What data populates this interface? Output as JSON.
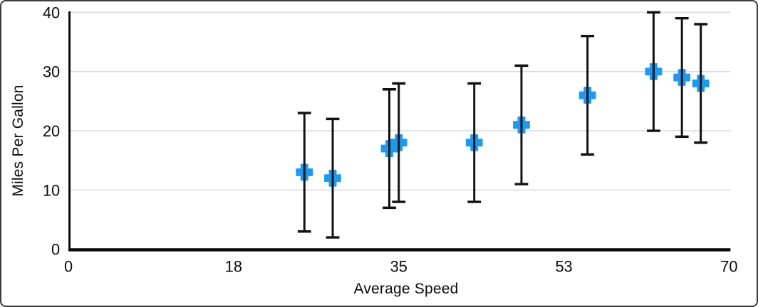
{
  "window": {
    "background_color": "#ffffff",
    "border_color": "#3d3d3d"
  },
  "chart_data": {
    "type": "scatter",
    "title": "",
    "xlabel": "Average Speed",
    "ylabel": "Miles Per Gallon",
    "xlim": [
      0,
      70
    ],
    "ylim": [
      0,
      40
    ],
    "grid": "horizontal-only",
    "legend": "none",
    "x_ticks": [
      {
        "value": 0,
        "label": "0"
      },
      {
        "value": 17.5,
        "label": "18"
      },
      {
        "value": 35,
        "label": "35"
      },
      {
        "value": 52.5,
        "label": "53"
      },
      {
        "value": 70,
        "label": "70"
      }
    ],
    "y_ticks": [
      {
        "value": 0,
        "label": "0"
      },
      {
        "value": 10,
        "label": "10"
      },
      {
        "value": 20,
        "label": "20"
      },
      {
        "value": 30,
        "label": "30"
      },
      {
        "value": 40,
        "label": "40"
      }
    ],
    "series": [
      {
        "name": "Miles Per Gallon",
        "marker": "plus",
        "marker_color": "#1C9AF0",
        "error_bar_color": "#111111",
        "error_y_plus": 10,
        "error_y_minus": 10,
        "points": [
          {
            "x": 25,
            "y": 13
          },
          {
            "x": 28,
            "y": 12
          },
          {
            "x": 34,
            "y": 17
          },
          {
            "x": 35,
            "y": 18
          },
          {
            "x": 43,
            "y": 18
          },
          {
            "x": 48,
            "y": 21
          },
          {
            "x": 55,
            "y": 26
          },
          {
            "x": 62,
            "y": 30
          },
          {
            "x": 65,
            "y": 29
          },
          {
            "x": 67,
            "y": 28
          }
        ]
      }
    ],
    "colors": {
      "gridline": "#DBDBDB",
      "axis": "#0b0b0b",
      "tick_label": "#0a0a0a"
    }
  }
}
